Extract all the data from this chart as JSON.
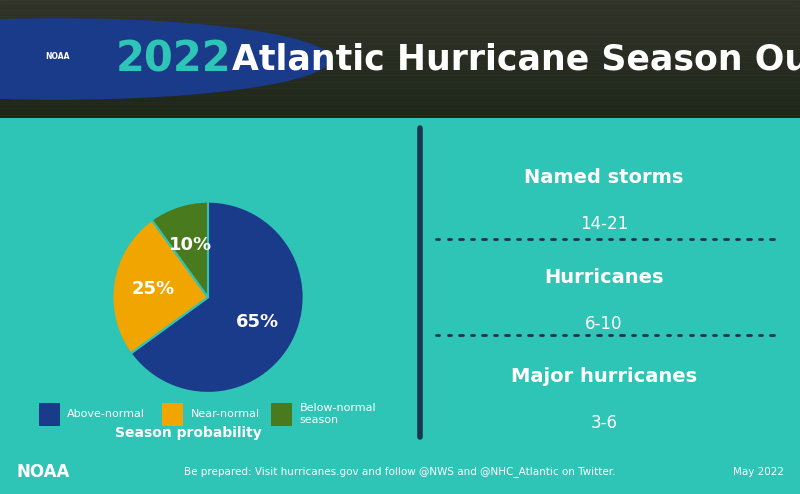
{
  "title_year": "2022",
  "title_rest": " Atlantic Hurricane Season Outlook",
  "header_bg_color": "#2a3a2a",
  "main_bg_color": "#2ec4b6",
  "footer_bg_color": "#1a3550",
  "pie_values": [
    65,
    25,
    10
  ],
  "pie_colors": [
    "#1a3a8a",
    "#f0a500",
    "#4a7a1e"
  ],
  "pie_labels": [
    "65%",
    "25%",
    "10%"
  ],
  "legend_labels": [
    "Above-normal",
    "Near-normal",
    "Below-normal\nseason"
  ],
  "season_prob_label": "Season probability",
  "storms": [
    {
      "name": "Named storms",
      "range": "14-21"
    },
    {
      "name": "Hurricanes",
      "range": "6-10"
    },
    {
      "name": "Major hurricanes",
      "range": "3-6"
    }
  ],
  "footer_left": "NOAA",
  "footer_center": "Be prepared: Visit hurricanes.gov and follow @NWS and @NHC_Atlantic on Twitter.",
  "footer_right": "May 2022",
  "divider_color": "#1a3550",
  "teal_color": "#2ec4b6",
  "title_teal": "#2ec4b6"
}
